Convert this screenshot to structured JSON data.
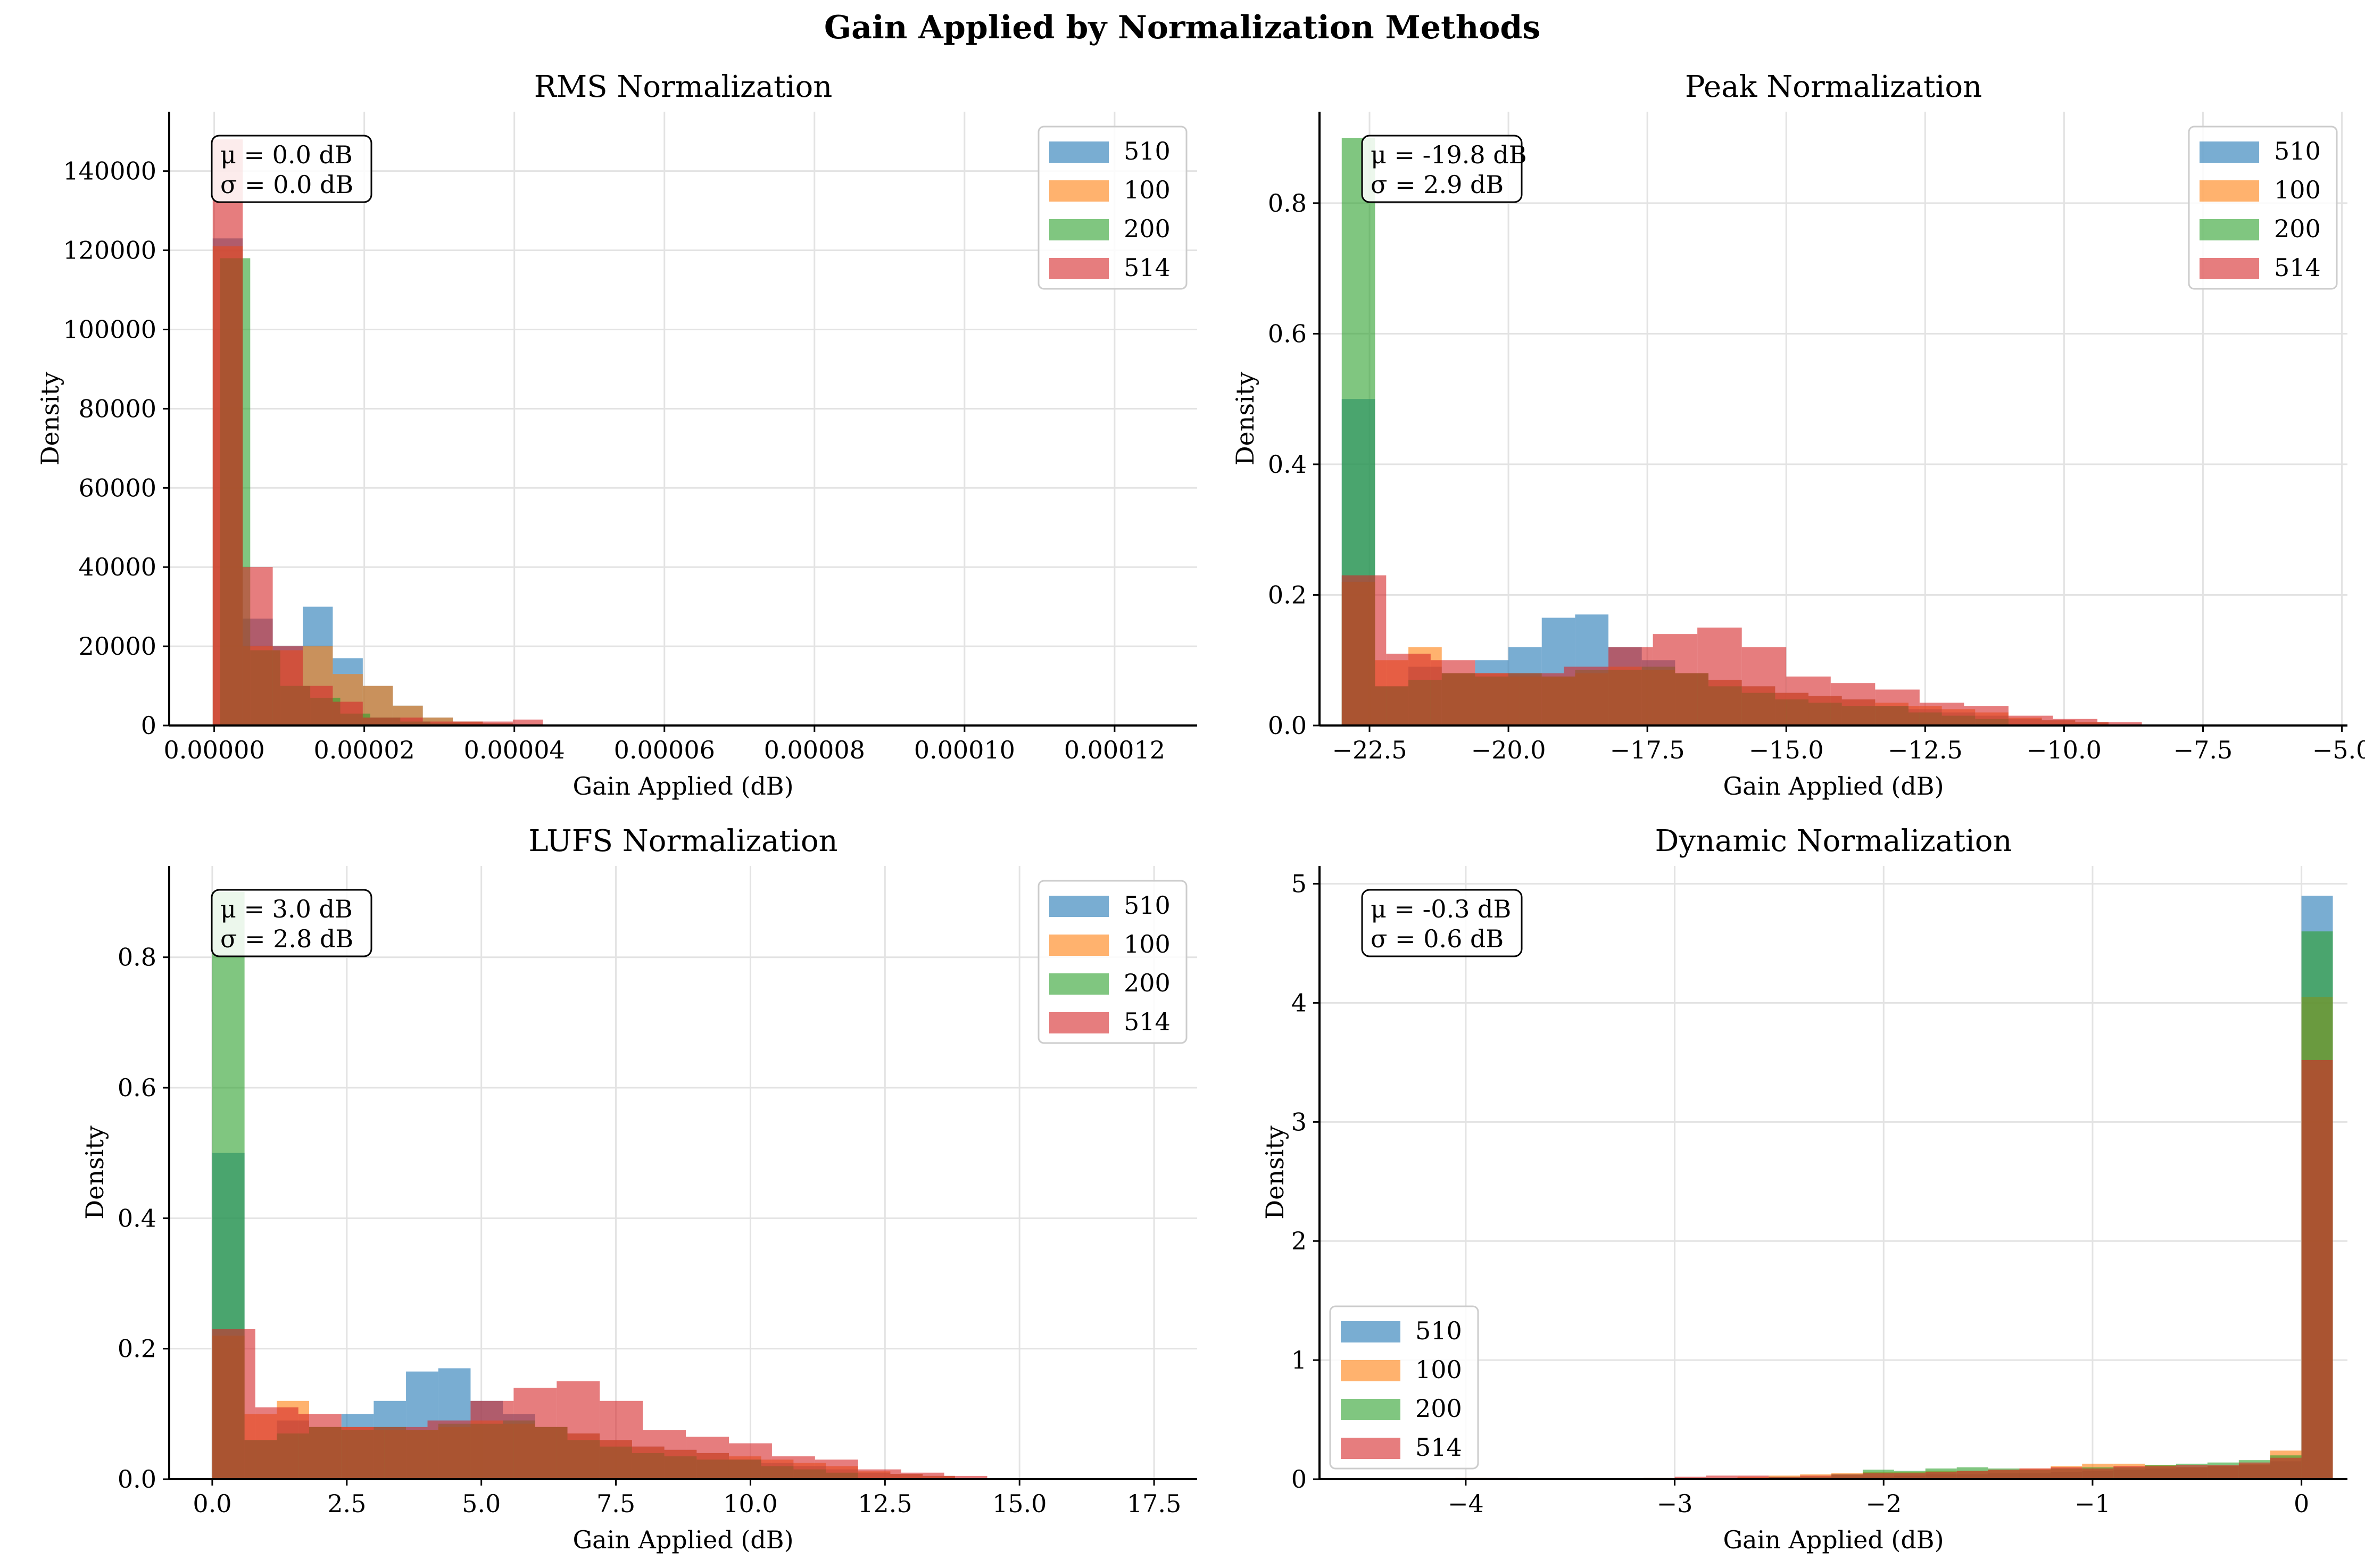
{
  "figure": {
    "title": "Gain Applied by Normalization Methods"
  },
  "colors": {
    "510": "#1f77b4",
    "100": "#ff7f0e",
    "200": "#2ca02c",
    "514": "#d62728"
  },
  "chart_data": [
    {
      "type": "histogram",
      "title": "RMS Normalization",
      "xlabel": "Gain Applied (dB)",
      "ylabel": "Density",
      "xlim": [
        -6e-06,
        0.000131
      ],
      "ylim": [
        0,
        155000
      ],
      "xticks": [
        0,
        2e-05,
        4e-05,
        6e-05,
        8e-05,
        0.0001,
        0.00012
      ],
      "xticklabels": [
        "0.00000",
        "0.00002",
        "0.00004",
        "0.00006",
        "0.00008",
        "0.00010",
        "0.00012"
      ],
      "yticks": [
        0,
        20000,
        40000,
        60000,
        80000,
        100000,
        120000,
        140000
      ],
      "yticklabels": [
        "0",
        "20000",
        "40000",
        "60000",
        "80000",
        "100000",
        "120000",
        "140000"
      ],
      "stats": [
        "μ = 0.0 dB",
        "σ = 0.0 dB"
      ],
      "legend": "top-right",
      "series": [
        {
          "name": "510",
          "bin_start": -2e-07,
          "bin_width": 4e-06,
          "values": [
            123000,
            27000,
            20000,
            30000,
            17000,
            10000,
            5000,
            2000,
            1000,
            500,
            300,
            200
          ]
        },
        {
          "name": "100",
          "bin_start": -2e-07,
          "bin_width": 4e-06,
          "values": [
            121000,
            20000,
            19000,
            20000,
            13000,
            10000,
            5000,
            2000,
            1000,
            500,
            300,
            200
          ]
        },
        {
          "name": "200",
          "bin_start": 8e-07,
          "bin_width": 4e-06,
          "values": [
            118000,
            19000,
            10000,
            7000,
            3000,
            2000,
            1000,
            500
          ]
        },
        {
          "name": "514",
          "bin_start": -2e-07,
          "bin_width": 4e-06,
          "values": [
            148000,
            40000,
            20000,
            10000,
            6000,
            2000,
            2000,
            1000,
            1000,
            1000,
            1500
          ]
        }
      ]
    },
    {
      "type": "histogram",
      "title": "Peak Normalization",
      "xlabel": "Gain Applied (dB)",
      "ylabel": "Density",
      "xlim": [
        -23.4,
        -4.9
      ],
      "ylim": [
        0,
        0.94
      ],
      "xticks": [
        -22.5,
        -20,
        -17.5,
        -15,
        -12.5,
        -10,
        -7.5,
        -5
      ],
      "xticklabels": [
        "−22.5",
        "−20.0",
        "−17.5",
        "−15.0",
        "−12.5",
        "−10.0",
        "−7.5",
        "−5.0"
      ],
      "yticks": [
        0,
        0.2,
        0.4,
        0.6,
        0.8
      ],
      "yticklabels": [
        "0.0",
        "0.2",
        "0.4",
        "0.6",
        "0.8"
      ],
      "stats": [
        "μ = -19.8 dB",
        "σ = 2.9 dB"
      ],
      "legend": "top-right",
      "series": [
        {
          "name": "510",
          "bin_start": -23.0,
          "bin_width": 0.6,
          "values": [
            0.5,
            0.06,
            0.09,
            0.08,
            0.1,
            0.12,
            0.165,
            0.17,
            0.12,
            0.1,
            0.08,
            0.07,
            0.06,
            0.05,
            0.045,
            0.04,
            0.03,
            0.025,
            0.02,
            0.015,
            0.01,
            0.008,
            0.005
          ]
        },
        {
          "name": "100",
          "bin_start": -23.0,
          "bin_width": 0.6,
          "values": [
            0.22,
            0.1,
            0.12,
            0.08,
            0.08,
            0.075,
            0.075,
            0.08,
            0.09,
            0.085,
            0.08,
            0.07,
            0.06,
            0.05,
            0.045,
            0.04,
            0.035,
            0.03,
            0.025,
            0.02,
            0.012,
            0.008,
            0.005
          ]
        },
        {
          "name": "200",
          "bin_start": -23.0,
          "bin_width": 0.6,
          "values": [
            0.9,
            0.06,
            0.07,
            0.08,
            0.075,
            0.08,
            0.075,
            0.085,
            0.085,
            0.09,
            0.08,
            0.06,
            0.05,
            0.04,
            0.035,
            0.03,
            0.03,
            0.02,
            0.015,
            0.01
          ]
        },
        {
          "name": "514",
          "bin_start": -23.0,
          "bin_width": 0.8,
          "values": [
            0.23,
            0.11,
            0.1,
            0.08,
            0.08,
            0.09,
            0.12,
            0.14,
            0.15,
            0.12,
            0.075,
            0.065,
            0.055,
            0.035,
            0.03,
            0.015,
            0.01,
            0.005
          ]
        }
      ]
    },
    {
      "type": "histogram",
      "title": "LUFS Normalization",
      "xlabel": "Gain Applied (dB)",
      "ylabel": "Density",
      "xlim": [
        -0.8,
        18.3
      ],
      "ylim": [
        0,
        0.94
      ],
      "xticks": [
        0,
        2.5,
        5,
        7.5,
        10,
        12.5,
        15,
        17.5
      ],
      "xticklabels": [
        "0.0",
        "2.5",
        "5.0",
        "7.5",
        "10.0",
        "12.5",
        "15.0",
        "17.5"
      ],
      "yticks": [
        0,
        0.2,
        0.4,
        0.6,
        0.8
      ],
      "yticklabels": [
        "0.0",
        "0.2",
        "0.4",
        "0.6",
        "0.8"
      ],
      "stats": [
        "μ = 3.0 dB",
        "σ = 2.8 dB"
      ],
      "legend": "top-right",
      "series": [
        {
          "name": "510",
          "bin_start": 0.0,
          "bin_width": 0.6,
          "values": [
            0.5,
            0.06,
            0.09,
            0.08,
            0.1,
            0.12,
            0.165,
            0.17,
            0.12,
            0.1,
            0.08,
            0.07,
            0.06,
            0.05,
            0.045,
            0.04,
            0.03,
            0.025,
            0.02,
            0.015,
            0.01,
            0.008,
            0.005
          ]
        },
        {
          "name": "100",
          "bin_start": 0.0,
          "bin_width": 0.6,
          "values": [
            0.22,
            0.1,
            0.12,
            0.08,
            0.08,
            0.075,
            0.075,
            0.08,
            0.09,
            0.085,
            0.08,
            0.07,
            0.06,
            0.05,
            0.045,
            0.04,
            0.035,
            0.03,
            0.025,
            0.02,
            0.012,
            0.008,
            0.005
          ]
        },
        {
          "name": "200",
          "bin_start": 0.0,
          "bin_width": 0.6,
          "values": [
            0.9,
            0.06,
            0.07,
            0.08,
            0.075,
            0.08,
            0.075,
            0.085,
            0.085,
            0.09,
            0.08,
            0.06,
            0.05,
            0.04,
            0.035,
            0.03,
            0.03,
            0.02,
            0.015,
            0.01
          ]
        },
        {
          "name": "514",
          "bin_start": 0.0,
          "bin_width": 0.8,
          "values": [
            0.23,
            0.11,
            0.1,
            0.08,
            0.08,
            0.09,
            0.12,
            0.14,
            0.15,
            0.12,
            0.075,
            0.065,
            0.055,
            0.035,
            0.03,
            0.015,
            0.01,
            0.005
          ]
        }
      ]
    },
    {
      "type": "histogram",
      "title": "Dynamic Normalization",
      "xlabel": "Gain Applied (dB)",
      "ylabel": "Density",
      "xlim": [
        -4.7,
        0.22
      ],
      "ylim": [
        0,
        5.15
      ],
      "xticks": [
        -4,
        -3,
        -2,
        -1,
        0
      ],
      "xticklabels": [
        "−4",
        "−3",
        "−2",
        "−1",
        "0"
      ],
      "yticks": [
        0,
        1,
        2,
        3,
        4,
        5
      ],
      "yticklabels": [
        "0",
        "1",
        "2",
        "3",
        "4",
        "5"
      ],
      "stats": [
        "μ = -0.3 dB",
        "σ = 0.6 dB"
      ],
      "legend": "bottom-left",
      "series": [
        {
          "name": "510",
          "bin_start": -4.5,
          "bin_width": 0.15,
          "values": [
            0,
            0,
            0,
            0,
            0.01,
            0,
            0,
            0,
            0,
            0,
            0,
            0,
            0,
            0.01,
            0.01,
            0.02,
            0.02,
            0.03,
            0.04,
            0.04,
            0.05,
            0.05,
            0.06,
            0.07,
            0.08,
            0.09,
            0.1,
            0.11,
            0.12,
            0.15,
            4.9
          ]
        },
        {
          "name": "100",
          "bin_start": -4.5,
          "bin_width": 0.15,
          "values": [
            0,
            0,
            0,
            0.01,
            0,
            0,
            0,
            0,
            0,
            0.01,
            0,
            0.01,
            0.02,
            0.03,
            0.04,
            0.05,
            0.06,
            0.06,
            0.07,
            0.07,
            0.08,
            0.09,
            0.11,
            0.13,
            0.13,
            0.12,
            0.1,
            0.11,
            0.13,
            0.24,
            4.05
          ]
        },
        {
          "name": "200",
          "bin_start": -4.5,
          "bin_width": 0.15,
          "values": [
            0,
            0,
            0,
            0,
            0,
            0,
            0,
            0,
            0,
            0,
            0.01,
            0.01,
            0.01,
            0.02,
            0.02,
            0.04,
            0.08,
            0.07,
            0.09,
            0.1,
            0.09,
            0.08,
            0.09,
            0.1,
            0.1,
            0.12,
            0.13,
            0.14,
            0.16,
            0.2,
            4.6
          ]
        },
        {
          "name": "514",
          "bin_start": -4.5,
          "bin_width": 0.15,
          "values": [
            0,
            0,
            0.01,
            0.01,
            0.01,
            0,
            0,
            0,
            0,
            0.01,
            0.02,
            0.03,
            0.03,
            0.02,
            0.03,
            0.04,
            0.05,
            0.05,
            0.06,
            0.07,
            0.08,
            0.09,
            0.1,
            0.09,
            0.11,
            0.11,
            0.12,
            0.12,
            0.14,
            0.18,
            3.52
          ]
        }
      ]
    }
  ]
}
